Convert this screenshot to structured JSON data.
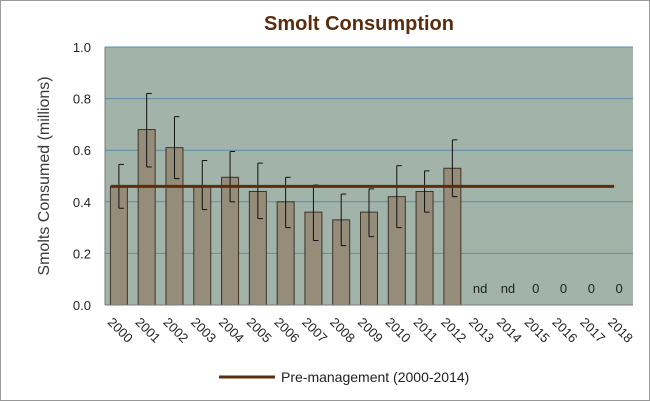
{
  "chart_data": {
    "type": "bar",
    "title": "Smolt Consumption",
    "xlabel": "",
    "ylabel": "Smolts Consumed  (millions)",
    "ylim": [
      0,
      1.0
    ],
    "yticks": [
      "0.0",
      "0.2",
      "0.4",
      "0.6",
      "0.8",
      "1.0"
    ],
    "grid": true,
    "categories": [
      "2000",
      "2001",
      "2002",
      "2003",
      "2004",
      "2005",
      "2006",
      "2007",
      "2008",
      "2009",
      "2010",
      "2011",
      "2012",
      "2013",
      "2014",
      "2015",
      "2016",
      "2017",
      "2018"
    ],
    "values": [
      0.46,
      0.68,
      0.61,
      0.46,
      0.495,
      0.44,
      0.4,
      0.36,
      0.33,
      0.36,
      0.42,
      0.44,
      0.53,
      null,
      null,
      null,
      null,
      null,
      null
    ],
    "error_upper": [
      0.545,
      0.82,
      0.73,
      0.56,
      0.595,
      0.55,
      0.495,
      0.465,
      0.43,
      0.45,
      0.54,
      0.52,
      0.64,
      null,
      null,
      null,
      null,
      null,
      null
    ],
    "error_lower": [
      0.375,
      0.535,
      0.49,
      0.37,
      0.4,
      0.335,
      0.3,
      0.25,
      0.23,
      0.265,
      0.3,
      0.36,
      0.42,
      null,
      null,
      null,
      null,
      null,
      null
    ],
    "bar_annotations": [
      "",
      "",
      "",
      "",
      "",
      "",
      "",
      "",
      "",
      "",
      "",
      "",
      "",
      "nd",
      "nd",
      "0",
      "0",
      "0",
      "0"
    ],
    "reference_line": {
      "name": "Pre-management (2000-2014)",
      "value": 0.46,
      "from_category": "2000",
      "to_category": "2018"
    },
    "legend_position": "bottom",
    "colors": {
      "plot_background": "#a2b3aa",
      "bar_fill": "#958c7a",
      "bar_stroke": "#3d3428",
      "reference_line": "#5c2e0a",
      "gridline": "#5a8ca8",
      "title": "#5a2d0c"
    }
  }
}
